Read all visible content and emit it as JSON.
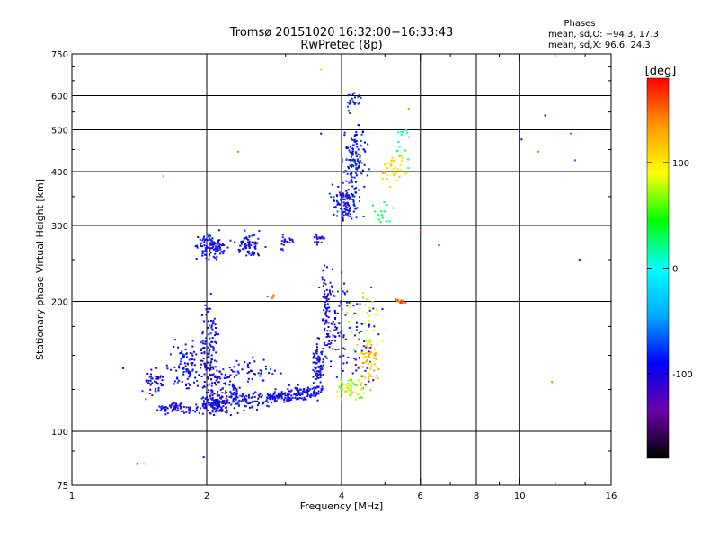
{
  "header": {
    "title_line1": "Tromsø 20151020 16:32:00−16:33:43",
    "title_line2": "RwPretec (8p)",
    "stats_title": "Phases",
    "stats_o": "mean, sd,O: −94.3, 17.3",
    "stats_x": "mean, sd,X:  96.6, 24.3"
  },
  "chart_data": {
    "type": "scatter",
    "title": "Tromsø 20151020 16:32:00−16:33:43",
    "subtitle": "RwPretec (8p)",
    "xlabel": "Frequency [MHz]",
    "ylabel": "Stationary phase Virtual Height [km]",
    "x_scale": "log",
    "y_scale": "log",
    "xlim": [
      1,
      16
    ],
    "ylim": [
      75,
      750
    ],
    "x_ticks": [
      1,
      2,
      4,
      6,
      8,
      10,
      16
    ],
    "x_tick_labels": [
      "1",
      "2",
      "4",
      "6",
      "8",
      "10",
      "16"
    ],
    "x_gridlines": [
      2,
      4,
      6,
      8,
      10
    ],
    "y_ticks": [
      75,
      100,
      200,
      300,
      400,
      500,
      600,
      750
    ],
    "y_tick_labels": [
      "75",
      "100",
      "200",
      "300",
      "400",
      "500",
      "600",
      "750"
    ],
    "y_gridlines": [
      100,
      200,
      300,
      400,
      500,
      600
    ],
    "grid": true,
    "colorbar": {
      "label": "[deg]",
      "min": -180,
      "max": 180,
      "ticks": [
        100,
        0,
        -100
      ],
      "colors": [
        "#000000",
        "#6a00a8",
        "#0000ff",
        "#00aaff",
        "#00ffff",
        "#00ff00",
        "#ffff00",
        "#ff9900",
        "#ff0000"
      ]
    },
    "series": [
      {
        "clusters": [
          {
            "x": 1.52,
            "y": 130,
            "sx": 0.035,
            "sy": 0.035,
            "n": 45,
            "p": -95
          },
          {
            "x": 1.72,
            "y": 113,
            "sx": 0.06,
            "sy": 0.015,
            "n": 70,
            "p": -95
          },
          {
            "x": 1.8,
            "y": 140,
            "sx": 0.04,
            "sy": 0.06,
            "n": 90,
            "p": -95
          },
          {
            "x": 2.02,
            "y": 155,
            "sx": 0.025,
            "sy": 0.12,
            "n": 110,
            "p": -95
          },
          {
            "x": 2.15,
            "y": 130,
            "sx": 0.05,
            "sy": 0.05,
            "n": 80,
            "p": -95
          },
          {
            "x": 2.1,
            "y": 115,
            "sx": 0.05,
            "sy": 0.025,
            "n": 120,
            "p": -95
          },
          {
            "x": 2.45,
            "y": 118,
            "sx": 0.08,
            "sy": 0.025,
            "n": 110,
            "p": -95
          },
          {
            "x": 2.55,
            "y": 138,
            "sx": 0.05,
            "sy": 0.04,
            "n": 40,
            "p": -95
          },
          {
            "x": 2.95,
            "y": 120,
            "sx": 0.05,
            "sy": 0.015,
            "n": 80,
            "p": -95
          },
          {
            "x": 3.3,
            "y": 123,
            "sx": 0.04,
            "sy": 0.02,
            "n": 70,
            "p": -95
          },
          {
            "x": 3.55,
            "y": 140,
            "sx": 0.015,
            "sy": 0.08,
            "n": 90,
            "p": -95
          },
          {
            "x": 3.7,
            "y": 190,
            "sx": 0.01,
            "sy": 0.12,
            "n": 70,
            "p": -95
          },
          {
            "x": 3.9,
            "y": 175,
            "sx": 0.03,
            "sy": 0.15,
            "n": 70,
            "p": -95
          },
          {
            "x": 2.05,
            "y": 268,
            "sx": 0.04,
            "sy": 0.03,
            "n": 110,
            "p": -95
          },
          {
            "x": 2.5,
            "y": 270,
            "sx": 0.03,
            "sy": 0.03,
            "n": 70,
            "p": -95
          },
          {
            "x": 3.0,
            "y": 275,
            "sx": 0.02,
            "sy": 0.03,
            "n": 20,
            "p": -95
          },
          {
            "x": 3.55,
            "y": 280,
            "sx": 0.02,
            "sy": 0.02,
            "n": 20,
            "p": -95
          },
          {
            "x": 4.1,
            "y": 340,
            "sx": 0.04,
            "sy": 0.05,
            "n": 120,
            "p": -90
          },
          {
            "x": 4.3,
            "y": 430,
            "sx": 0.03,
            "sy": 0.09,
            "n": 120,
            "p": -90
          },
          {
            "x": 4.25,
            "y": 590,
            "sx": 0.02,
            "sy": 0.03,
            "n": 25,
            "p": -90
          },
          {
            "x": 4.4,
            "y": 160,
            "sx": 0.05,
            "sy": 0.12,
            "n": 60,
            "p": -90
          },
          {
            "x": 4.2,
            "y": 125,
            "sx": 0.04,
            "sy": 0.03,
            "n": 50,
            "p": 80
          },
          {
            "x": 4.6,
            "y": 145,
            "sx": 0.03,
            "sy": 0.07,
            "n": 60,
            "p": 120
          },
          {
            "x": 4.5,
            "y": 180,
            "sx": 0.04,
            "sy": 0.1,
            "n": 40,
            "p": 90
          },
          {
            "x": 5.2,
            "y": 410,
            "sx": 0.03,
            "sy": 0.04,
            "n": 40,
            "p": 105
          },
          {
            "x": 5.4,
            "y": 200,
            "sx": 0.02,
            "sy": 0.01,
            "n": 12,
            "p": 150
          },
          {
            "x": 5.0,
            "y": 330,
            "sx": 0.03,
            "sy": 0.05,
            "n": 15,
            "p": 20
          },
          {
            "x": 5.5,
            "y": 480,
            "sx": 0.02,
            "sy": 0.1,
            "n": 15,
            "p": 10
          },
          {
            "x": 2.8,
            "y": 205,
            "sx": 0.01,
            "sy": 0.01,
            "n": 8,
            "p": 150
          }
        ],
        "points": [
          {
            "x": 1.6,
            "y": 390,
            "p": 140
          },
          {
            "x": 2.35,
            "y": 445,
            "p": 150
          },
          {
            "x": 6.6,
            "y": 270,
            "p": -100
          },
          {
            "x": 10.1,
            "y": 475,
            "p": -100
          },
          {
            "x": 11.4,
            "y": 540,
            "p": -100
          },
          {
            "x": 13.0,
            "y": 490,
            "p": 160
          },
          {
            "x": 11.0,
            "y": 445,
            "p": 150
          },
          {
            "x": 13.3,
            "y": 425,
            "p": -60
          },
          {
            "x": 13.6,
            "y": 250,
            "p": -100
          },
          {
            "x": 11.8,
            "y": 130,
            "p": 140
          },
          {
            "x": 1.4,
            "y": 84,
            "p": -100
          },
          {
            "x": 1.45,
            "y": 84,
            "p": 120
          },
          {
            "x": 1.97,
            "y": 87,
            "p": -100
          },
          {
            "x": 3.6,
            "y": 690,
            "p": 110
          },
          {
            "x": 3.6,
            "y": 490,
            "p": -100
          },
          {
            "x": 5.65,
            "y": 560,
            "p": 140
          },
          {
            "x": 6.0,
            "y": 290,
            "p": 160
          },
          {
            "x": 1.3,
            "y": 140,
            "p": -100
          }
        ]
      }
    ]
  }
}
